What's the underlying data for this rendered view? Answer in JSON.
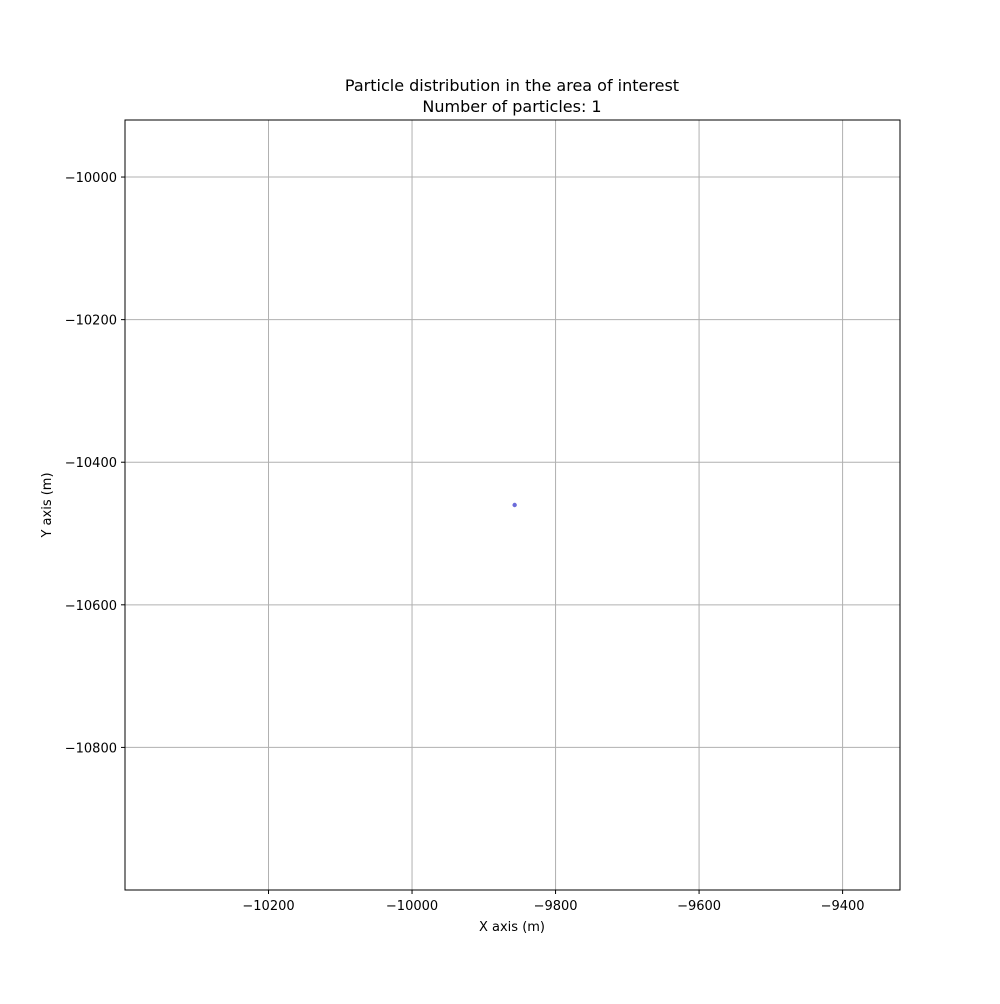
{
  "chart_data": {
    "type": "scatter",
    "title": "Particle distribution in the area of interest",
    "subtitle": "Number of particles: 1",
    "xlabel": "X axis (m)",
    "ylabel": "Y axis (m)",
    "xlim": [
      -10400,
      -9320
    ],
    "ylim": [
      -11000,
      -9920
    ],
    "xticks": [
      -10200,
      -10000,
      -9800,
      -9600,
      -9400
    ],
    "yticks": [
      -10000,
      -10200,
      -10400,
      -10600,
      -10800
    ],
    "xtick_labels": [
      "−10200",
      "−10000",
      "−9800",
      "−9600",
      "−9400"
    ],
    "ytick_labels": [
      "−10000",
      "−10200",
      "−10400",
      "−10600",
      "−10800"
    ],
    "grid": true,
    "point_color": "#5b5bd6",
    "points": [
      {
        "x": -9857,
        "y": -10460
      }
    ]
  }
}
